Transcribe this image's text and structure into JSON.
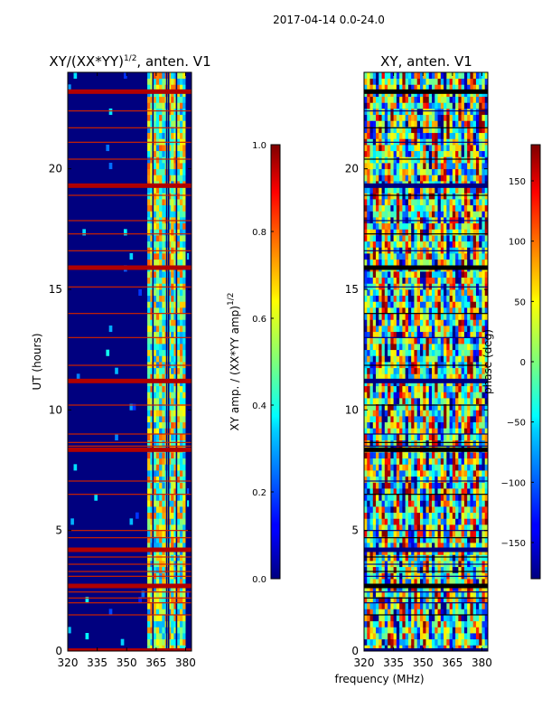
{
  "suptitle": "2017-04-14 0.0-24.0",
  "colors": {
    "dark_blue": "#00007f",
    "blue": "#0000ff",
    "cyan": "#00ffff",
    "yellow": "#ffff00",
    "red": "#ff0000",
    "dark_red": "#7f0000",
    "gridline": "#cc2200"
  },
  "chart_data": [
    {
      "type": "heatmap",
      "title": "XY/(XX*YY)",
      "title_exponent": "1/2",
      "title_suffix": ", anten. V1",
      "xlabel": "",
      "ylabel": "UT (hours)",
      "xlim": [
        320,
        383
      ],
      "ylim": [
        0,
        24
      ],
      "xticks": [
        "320",
        "335",
        "350",
        "365",
        "380"
      ],
      "xtick_values": [
        320,
        335,
        350,
        365,
        380
      ],
      "yticks": [
        "0",
        "5",
        "10",
        "15",
        "20"
      ],
      "ytick_values": [
        0,
        5,
        10,
        15,
        20
      ],
      "colorscale": "jet",
      "colorbar": {
        "label": "XY amp. / (XX*YY amp)",
        "label_exponent": "1/2",
        "range": [
          0.0,
          1.0
        ],
        "ticks": [
          "0.0",
          "0.2",
          "0.4",
          "0.6",
          "0.8",
          "1.0"
        ],
        "tick_values": [
          0.0,
          0.2,
          0.4,
          0.6,
          0.8,
          1.0
        ]
      },
      "active_band_mhz": [
        360,
        379
      ],
      "bad_time_rows_hours": [
        0.02,
        1.5,
        2.0,
        2.2,
        2.45,
        2.7,
        3.1,
        3.3,
        3.6,
        3.9,
        4.2,
        4.7,
        5.0,
        6.5,
        7.05,
        8.35,
        8.5,
        8.65,
        9.0,
        10.2,
        11.2,
        11.85,
        13.0,
        14.0,
        15.1,
        15.9,
        16.6,
        17.3,
        17.85,
        18.9,
        19.3,
        20.4,
        21.1,
        21.7,
        22.4,
        23.2
      ],
      "bad_channel_columns_mhz": [
        363,
        370,
        371,
        375,
        380
      ]
    },
    {
      "type": "heatmap",
      "title": "XY, anten. V1",
      "xlabel": "frequency (MHz)",
      "ylabel": "",
      "xlim": [
        320,
        383
      ],
      "ylim": [
        0,
        24
      ],
      "xticks": [
        "320",
        "335",
        "350",
        "365",
        "380"
      ],
      "xtick_values": [
        320,
        335,
        350,
        365,
        380
      ],
      "yticks": [
        "0",
        "5",
        "10",
        "15",
        "20"
      ],
      "ytick_values": [
        0,
        5,
        10,
        15,
        20
      ],
      "colorscale": "jet",
      "colorbar": {
        "label": "phase (deg)",
        "range": [
          -180,
          180
        ],
        "ticks": [
          "−150",
          "−100",
          "−50",
          "0",
          "50",
          "100",
          "150"
        ],
        "tick_values": [
          -150,
          -100,
          -50,
          0,
          50,
          100,
          150
        ]
      },
      "bad_time_rows_hours": [
        0.02,
        1.5,
        2.0,
        2.2,
        2.45,
        2.7,
        3.1,
        3.3,
        3.6,
        3.9,
        4.2,
        4.7,
        5.0,
        6.5,
        7.05,
        8.35,
        8.5,
        8.65,
        9.0,
        10.2,
        11.2,
        11.85,
        13.0,
        14.0,
        15.1,
        15.9,
        16.6,
        17.3,
        17.85,
        18.9,
        19.3,
        20.4,
        21.1,
        21.7,
        22.4,
        23.2
      ]
    }
  ]
}
